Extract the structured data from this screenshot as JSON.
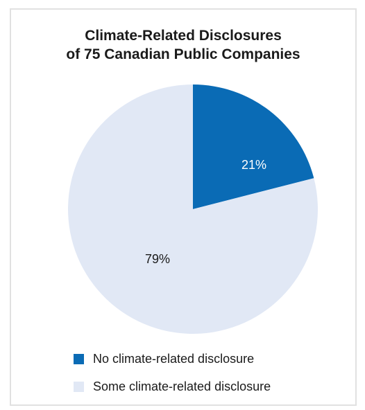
{
  "chart_data": {
    "type": "pie",
    "title": [
      "Climate-Related Disclosures",
      "of 75 Canadian Public Companies"
    ],
    "slices": [
      {
        "name": "No climate-related disclosure",
        "value": 21,
        "label": "21%",
        "color": "#0a6bb5",
        "label_color": "#ffffff"
      },
      {
        "name": "Some climate-related disclosure",
        "value": 79,
        "label": "79%",
        "color": "#e1e8f5",
        "label_color": "#1a1a1a"
      }
    ],
    "start_angle": "12 o'clock",
    "direction": "clockwise",
    "legend_position": "bottom"
  }
}
